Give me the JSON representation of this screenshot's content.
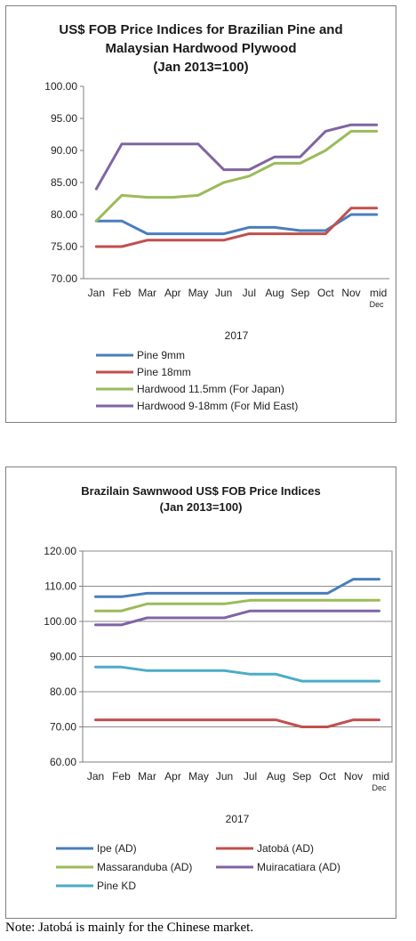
{
  "charts_text": {
    "chart1_title_line1": "US$ FOB Price Indices for Brazilian  Pine and",
    "chart1_title_line2": "Malaysian Hardwood Plywood",
    "chart1_title_line3": "(Jan 2013=100)",
    "chart2_title_line1": "Brazilain Sawnwood US$ FOB Price Indices",
    "chart2_title_line2": "(Jan 2013=100)"
  },
  "chart_data": [
    {
      "type": "line",
      "title": "US$ FOB Price Indices for Brazilian  Pine and Malaysian Hardwood Plywood (Jan 2013=100)",
      "xlabel": "2017",
      "categories": [
        "Jan",
        "Feb",
        "Mar",
        "Apr",
        "May",
        "Jun",
        "Jul",
        "Aug",
        "Sep",
        "Oct",
        "Nov",
        "mid Dec"
      ],
      "ylim": [
        70,
        100
      ],
      "yticks": [
        "70.00",
        "75.00",
        "80.00",
        "85.00",
        "90.00",
        "95.00",
        "100.00"
      ],
      "grid": false,
      "legend_position": "bottom",
      "series": [
        {
          "name": "Pine 9mm",
          "color": "#4a7ebb",
          "values": [
            79,
            79,
            77,
            77,
            77,
            77,
            78,
            78,
            77.5,
            77.5,
            80,
            80
          ]
        },
        {
          "name": "Pine 18mm",
          "color": "#c0504d",
          "values": [
            75,
            75,
            76,
            76,
            76,
            76,
            77,
            77,
            77,
            77,
            81,
            81
          ]
        },
        {
          "name": "Hardwood 11.5mm (For Japan)",
          "color": "#9bbb59",
          "values": [
            79,
            83,
            82.7,
            82.7,
            83,
            85,
            86,
            88,
            88,
            90,
            93,
            93
          ]
        },
        {
          "name": "Hardwood 9-18mm (For Mid East)",
          "color": "#8064a2",
          "values": [
            84,
            91,
            91,
            91,
            91,
            87,
            87,
            89,
            89,
            93,
            94,
            94
          ]
        }
      ]
    },
    {
      "type": "line",
      "title": "Brazilain Sawnwood US$ FOB Price Indices (Jan 2013=100)",
      "xlabel": "2017",
      "categories": [
        "Jan",
        "Feb",
        "Mar",
        "Apr",
        "May",
        "Jun",
        "Jul",
        "Aug",
        "Sep",
        "Oct",
        "Nov",
        "mid Dec"
      ],
      "ylim": [
        60,
        120
      ],
      "yticks": [
        "60.00",
        "70.00",
        "80.00",
        "90.00",
        "100.00",
        "110.00",
        "120.00"
      ],
      "grid": true,
      "legend_position": "bottom",
      "series": [
        {
          "name": "Ipe (AD)",
          "color": "#4a7ebb",
          "values": [
            107,
            107,
            108,
            108,
            108,
            108,
            108,
            108,
            108,
            108,
            112,
            112
          ]
        },
        {
          "name": "Jatobá (AD)",
          "color": "#c0504d",
          "values": [
            72,
            72,
            72,
            72,
            72,
            72,
            72,
            72,
            70,
            70,
            72,
            72
          ]
        },
        {
          "name": "Massaranduba (AD)",
          "color": "#9bbb59",
          "values": [
            103,
            103,
            105,
            105,
            105,
            105,
            106,
            106,
            106,
            106,
            106,
            106
          ]
        },
        {
          "name": "Muiracatiara (AD)",
          "color": "#8064a2",
          "values": [
            99,
            99,
            101,
            101,
            101,
            101,
            103,
            103,
            103,
            103,
            103,
            103
          ]
        },
        {
          "name": "Pine KD",
          "color": "#4bacc6",
          "values": [
            87,
            87,
            86,
            86,
            86,
            86,
            85,
            85,
            83,
            83,
            83,
            83
          ]
        }
      ]
    }
  ],
  "note": "Note: Jatobá is mainly for the Chinese market."
}
